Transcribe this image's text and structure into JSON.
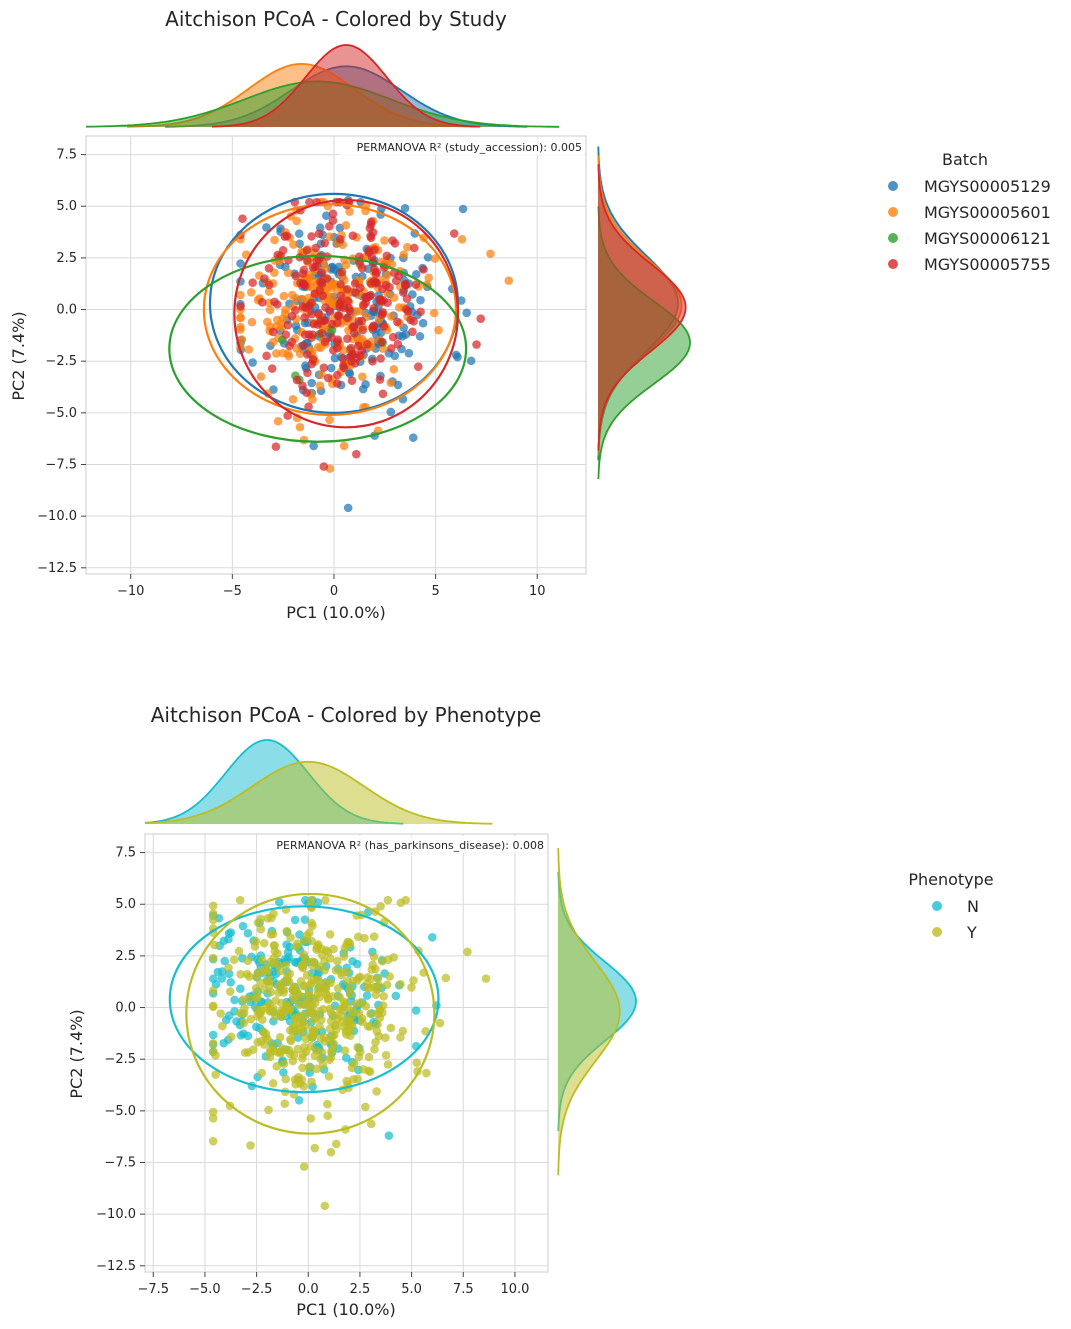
{
  "chart_data": [
    {
      "type": "scatter",
      "title": "Aitchison PCoA - Colored by Study",
      "xlabel": "PC1 (10.0%)",
      "ylabel": "PC2 (7.4%)",
      "xlim": [
        -12.2,
        12.4
      ],
      "ylim": [
        -12.8,
        8.4
      ],
      "xticks": [
        -10,
        -5,
        0,
        5,
        10
      ],
      "xtick_labels": [
        "−10",
        "−5",
        "0",
        "5",
        "10"
      ],
      "yticks": [
        7.5,
        5.0,
        2.5,
        0.0,
        -2.5,
        -5.0,
        -7.5,
        -10.0,
        -12.5
      ],
      "ytick_labels": [
        "7.5",
        "5.0",
        "2.5",
        "0.0",
        "−2.5",
        "−5.0",
        "−7.5",
        "−10.0",
        "−12.5"
      ],
      "grid": true,
      "annotation": "PERMANOVA R² (study_accession): 0.005",
      "legend_title": "Batch",
      "legend_position": "right",
      "series": [
        {
          "name": "MGYS00005129",
          "color": "#1f77b4",
          "n": 190,
          "mx": 0.8,
          "sx": 2.4,
          "my": 0.1,
          "sy": 2.4,
          "seed": 11,
          "ellipse": {
            "cx": 0.0,
            "cy": 0.3,
            "rx": 6.1,
            "ry": 5.3
          },
          "kde_x": {
            "mean": 0.6,
            "sd": 2.7
          },
          "kde_y": {
            "mean": 0.3,
            "sd": 2.3
          },
          "points": [
            [
              0.7,
              -9.6
            ],
            [
              3.9,
              -6.2
            ],
            [
              2.0,
              -6.1
            ],
            [
              -1.0,
              -6.6
            ],
            [
              3.5,
              4.9
            ],
            [
              0.7,
              5.3
            ]
          ]
        },
        {
          "name": "MGYS00005601",
          "color": "#ff7f0e",
          "n": 260,
          "mx": -0.4,
          "sx": 2.2,
          "my": 0.2,
          "sy": 2.2,
          "seed": 23,
          "ellipse": {
            "cx": -0.2,
            "cy": 0.0,
            "rx": 6.2,
            "ry": 5.1
          },
          "kde_x": {
            "mean": -1.6,
            "sd": 2.6
          },
          "kde_y": {
            "mean": 0.2,
            "sd": 2.2
          },
          "points": [
            [
              8.6,
              1.4
            ],
            [
              7.7,
              2.7
            ],
            [
              6.3,
              3.4
            ],
            [
              -0.2,
              -7.7
            ],
            [
              0.5,
              -6.6
            ],
            [
              -0.3,
              5.0
            ]
          ]
        },
        {
          "name": "MGYS00006121",
          "color": "#2ca02c",
          "n": 3,
          "mx": -1.5,
          "sx": 1.0,
          "my": -2.0,
          "sy": 1.0,
          "seed": 31,
          "ellipse": {
            "cx": -0.8,
            "cy": -1.9,
            "rx": 7.3,
            "ry": 4.5
          },
          "kde_x": {
            "mean": -0.8,
            "sd": 3.6
          },
          "kde_y": {
            "mean": -1.6,
            "sd": 2.0
          },
          "points": [
            [
              -1.7,
              -3.4
            ],
            [
              2.4,
              -1.6
            ],
            [
              -1.9,
              -3.2
            ]
          ]
        },
        {
          "name": "MGYS00005755",
          "color": "#d62728",
          "n": 220,
          "mx": 0.5,
          "sx": 2.1,
          "my": 0.3,
          "sy": 2.2,
          "seed": 47,
          "ellipse": {
            "cx": 0.6,
            "cy": -0.2,
            "rx": 5.5,
            "ry": 5.5
          },
          "kde_x": {
            "mean": 0.6,
            "sd": 2.0
          },
          "kde_y": {
            "mean": 0.1,
            "sd": 2.1
          },
          "points": [
            [
              -0.5,
              -7.6
            ],
            [
              1.1,
              -7.0
            ],
            [
              -4.5,
              4.4
            ],
            [
              -4.0,
              1.3
            ]
          ]
        }
      ]
    },
    {
      "type": "scatter",
      "title": "Aitchison PCoA - Colored by Phenotype",
      "xlabel": "PC1 (10.0%)",
      "ylabel": "PC2 (7.4%)",
      "xlim": [
        -7.9,
        11.6
      ],
      "ylim": [
        -12.8,
        8.4
      ],
      "xticks": [
        -7.5,
        -5.0,
        -2.5,
        0.0,
        2.5,
        5.0,
        7.5,
        10.0
      ],
      "xtick_labels": [
        "−7.5",
        "−5.0",
        "−2.5",
        "0.0",
        "2.5",
        "5.0",
        "7.5",
        "10.0"
      ],
      "yticks": [
        7.5,
        5.0,
        2.5,
        0.0,
        -2.5,
        -5.0,
        -7.5,
        -10.0,
        -12.5
      ],
      "ytick_labels": [
        "7.5",
        "5.0",
        "2.5",
        "0.0",
        "−2.5",
        "−5.0",
        "−7.5",
        "−10.0",
        "−12.5"
      ],
      "grid": true,
      "annotation": "PERMANOVA R² (has_parkinsons_disease): 0.008",
      "legend_title": "Phenotype",
      "legend_position": "right",
      "series": [
        {
          "name": "N",
          "color": "#17becf",
          "n": 230,
          "mx": -0.6,
          "sx": 2.3,
          "my": 0.4,
          "sy": 1.9,
          "seed": 59,
          "ellipse": {
            "cx": -0.2,
            "cy": 0.4,
            "rx": 6.5,
            "ry": 4.5
          },
          "kde_x": {
            "mean": -2.0,
            "sd": 2.0
          },
          "kde_y": {
            "mean": 0.3,
            "sd": 1.9
          },
          "points": [
            [
              6.2,
              0.1
            ],
            [
              6.0,
              3.4
            ],
            [
              3.9,
              -6.2
            ],
            [
              -1.4,
              5.1
            ]
          ]
        },
        {
          "name": "Y",
          "color": "#bcbd22",
          "n": 430,
          "mx": 0.1,
          "sx": 2.4,
          "my": -0.1,
          "sy": 2.4,
          "seed": 71,
          "ellipse": {
            "cx": 0.1,
            "cy": -0.3,
            "rx": 6.0,
            "ry": 5.8
          },
          "kde_x": {
            "mean": 0.0,
            "sd": 2.7
          },
          "kde_y": {
            "mean": -0.2,
            "sd": 2.4
          },
          "points": [
            [
              0.8,
              -9.6
            ],
            [
              8.6,
              1.4
            ],
            [
              7.7,
              2.7
            ],
            [
              -0.2,
              -7.7
            ],
            [
              1.1,
              -7.0
            ],
            [
              3.5,
              4.9
            ]
          ]
        }
      ]
    }
  ]
}
